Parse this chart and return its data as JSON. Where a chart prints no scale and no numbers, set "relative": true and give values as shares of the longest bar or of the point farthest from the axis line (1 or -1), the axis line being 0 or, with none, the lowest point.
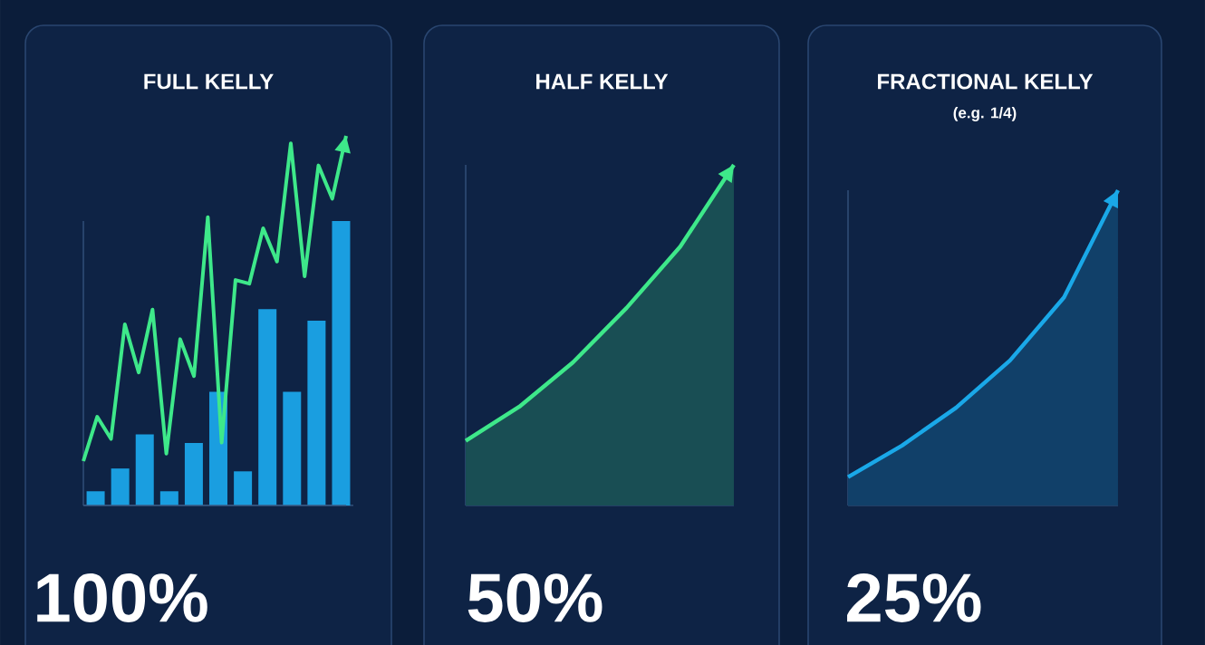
{
  "chart_data": [
    {
      "type": "bar",
      "title": "FULL KELLY",
      "annotations": [
        "100%"
      ],
      "relative": true,
      "categories": [
        null,
        null,
        null,
        null,
        null,
        null,
        null,
        null,
        null,
        null,
        null
      ],
      "series": [
        {
          "color": "#1a9ee0",
          "values": [
            0.05,
            0.13,
            0.25,
            0.05,
            0.22,
            0.4,
            0.12,
            0.69,
            0.4,
            0.65,
            1.0
          ]
        }
      ]
    },
    {
      "type": "line",
      "relative": true,
      "categories": [
        null,
        null,
        null,
        null,
        null,
        null,
        null,
        null,
        null,
        null,
        null,
        null,
        null,
        null,
        null,
        null,
        null,
        null,
        null,
        null
      ],
      "series": [
        {
          "color": "#3ee88a",
          "values": [
            0.12,
            0.24,
            0.18,
            0.49,
            0.36,
            0.53,
            0.14,
            0.45,
            0.35,
            0.78,
            0.17,
            0.61,
            0.6,
            0.75,
            0.66,
            0.98,
            0.62,
            0.92,
            0.83,
            1.0
          ]
        }
      ]
    },
    {
      "type": "area",
      "title": "HALF KELLY",
      "annotations": [
        "50%"
      ],
      "relative": true,
      "categories": [
        null,
        null,
        null,
        null,
        null,
        null
      ],
      "series": [
        {
          "color": "#3ee88a",
          "values": [
            0.19,
            0.29,
            0.42,
            0.58,
            0.76,
            1.0
          ]
        }
      ]
    },
    {
      "type": "area",
      "title": "FRACTIONAL KELLY",
      "subtitle": "(e.g. 1/4)",
      "annotations": [
        "25%"
      ],
      "relative": true,
      "categories": [
        null,
        null,
        null,
        null,
        null,
        null
      ],
      "series": [
        {
          "color": "#1aa8e8",
          "values": [
            0.09,
            0.19,
            0.31,
            0.46,
            0.66,
            1.0
          ]
        }
      ]
    }
  ]
}
